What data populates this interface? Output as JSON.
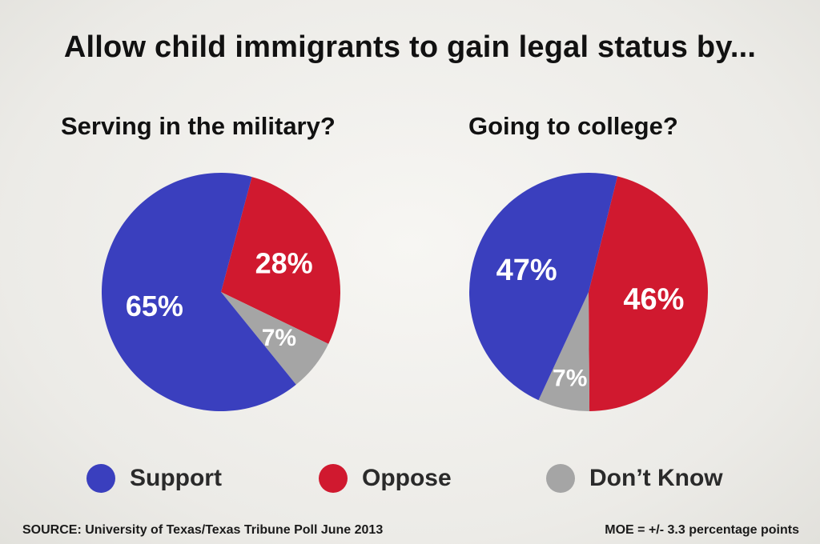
{
  "title": "Allow child immigrants to gain legal status by...",
  "colors": {
    "support": "#3a3fbe",
    "oppose": "#d0192f",
    "dont_know": "#a5a5a5"
  },
  "legend": [
    {
      "key": "support",
      "label": "Support"
    },
    {
      "key": "oppose",
      "label": "Oppose"
    },
    {
      "key": "dont_know",
      "label": "Don’t Know"
    }
  ],
  "footer": {
    "source": "SOURCE: University of Texas/Texas Tribune Poll June 2013",
    "moe": "MOE = +/- 3.3 percentage points"
  },
  "chart_data": [
    {
      "type": "pie",
      "title": "Serving in the military?",
      "slices": [
        {
          "key": "oppose",
          "label": "28%",
          "value": 28
        },
        {
          "key": "dont_know",
          "label": "7%",
          "value": 7
        },
        {
          "key": "support",
          "label": "65%",
          "value": 65
        }
      ]
    },
    {
      "type": "pie",
      "title": "Going to college?",
      "slices": [
        {
          "key": "oppose",
          "label": "46%",
          "value": 46
        },
        {
          "key": "dont_know",
          "label": "7%",
          "value": 7
        },
        {
          "key": "support",
          "label": "47%",
          "value": 47
        }
      ]
    }
  ]
}
